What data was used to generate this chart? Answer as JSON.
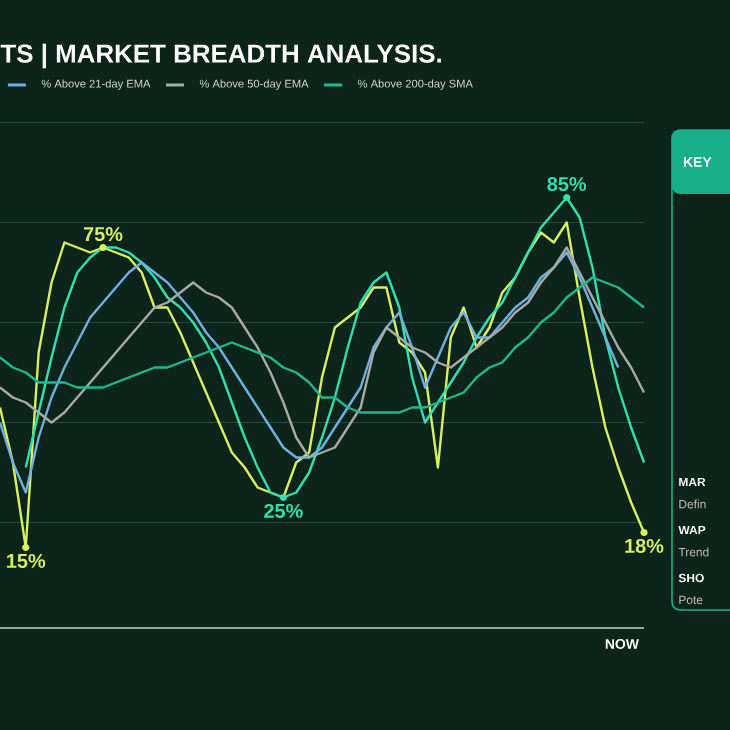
{
  "chart_data": {
    "type": "line",
    "title": "TS | MARKET BREADTH ANALYSIS.",
    "categories": [
      null,
      null,
      null,
      null,
      null,
      null,
      null,
      null,
      null,
      null,
      null,
      null,
      null,
      null,
      null,
      null,
      null,
      null,
      null,
      null,
      null,
      null,
      null,
      null,
      null,
      null,
      null,
      null,
      null,
      null,
      null,
      null,
      null,
      null,
      null,
      null,
      null,
      null,
      null,
      null,
      null,
      null,
      null,
      null,
      null,
      null,
      null,
      null,
      null,
      null,
      null
    ],
    "yticks": [
      {
        "value": 20,
        "label": null
      },
      {
        "value": 40,
        "label": null
      },
      {
        "value": 60,
        "label": null
      },
      {
        "value": 80,
        "label": null
      },
      {
        "value": 100,
        "label": null
      }
    ],
    "grid": "y",
    "legend": "top left",
    "annotations": [
      "NOW",
      "KEY",
      "MAR",
      "Defin",
      "WAP",
      "Trend",
      "SHO",
      "Pote"
    ],
    "series": [
      {
        "color": "#d8f060",
        "values": [
          43,
          32,
          15,
          54,
          68,
          76,
          75,
          74,
          75,
          74,
          73,
          70,
          63,
          63,
          58,
          52,
          46,
          40,
          34,
          31,
          27,
          26,
          25,
          32,
          34,
          49,
          59,
          61,
          63,
          67,
          67,
          56,
          54,
          50,
          31,
          57,
          63,
          55,
          59,
          66,
          69,
          74,
          78,
          76,
          80,
          65,
          51,
          39,
          31,
          24,
          18
        ],
        "value_labels": [
          null,
          null,
          "15%",
          null,
          null,
          null,
          null,
          null,
          "75%",
          null,
          null,
          null,
          null,
          null,
          null,
          null,
          null,
          null,
          null,
          null,
          null,
          null,
          null,
          null,
          null,
          null,
          null,
          null,
          null,
          null,
          null,
          null,
          null,
          null,
          null,
          null,
          null,
          null,
          null,
          null,
          null,
          null,
          null,
          null,
          null,
          null,
          null,
          null,
          null,
          null,
          "18%"
        ]
      },
      {
        "color": "#30e0b0",
        "values": [
          null,
          null,
          31,
          42,
          53,
          63,
          70,
          73,
          75,
          75,
          74,
          72,
          69,
          65,
          63,
          60,
          56,
          51,
          44,
          37,
          31,
          26,
          25,
          26,
          30,
          37,
          45,
          55,
          64,
          68,
          70,
          63,
          49,
          40,
          44,
          48,
          52,
          57,
          61,
          64,
          69,
          74,
          79,
          82,
          85,
          81,
          71,
          57,
          47,
          39,
          32
        ],
        "value_labels": [
          null,
          null,
          null,
          null,
          null,
          null,
          null,
          null,
          null,
          null,
          null,
          null,
          null,
          null,
          null,
          null,
          null,
          null,
          null,
          null,
          null,
          null,
          "25%",
          null,
          null,
          null,
          null,
          null,
          null,
          null,
          null,
          null,
          null,
          null,
          null,
          null,
          null,
          null,
          null,
          null,
          null,
          null,
          null,
          null,
          "85%",
          null,
          null,
          null,
          null,
          null,
          null
        ]
      },
      {
        "name": "% Above 21-day EMA",
        "color": "#70b0e0",
        "values": [
          40,
          32,
          26,
          37,
          45,
          51,
          56,
          61,
          64,
          67,
          70,
          72,
          70,
          68,
          65,
          62,
          58,
          55,
          51,
          47,
          43,
          39,
          35,
          33,
          33,
          35,
          39,
          43,
          47,
          55,
          59,
          62,
          55,
          47,
          53,
          59,
          62,
          57,
          57,
          60,
          63,
          65,
          69,
          71,
          74,
          69,
          63,
          57,
          51,
          null,
          null
        ]
      },
      {
        "name": "% Above 50-day EMA",
        "color": "#a8aaa8",
        "values": [
          47,
          45,
          44,
          42,
          40,
          42,
          45,
          48,
          51,
          54,
          57,
          60,
          63,
          64,
          66,
          68,
          66,
          65,
          63,
          59,
          55,
          50,
          44,
          37,
          33,
          34,
          35,
          39,
          43,
          54,
          59,
          57,
          55,
          54,
          52,
          51,
          53,
          55,
          57,
          59,
          62,
          64,
          68,
          71,
          75,
          70,
          65,
          60,
          55,
          51,
          46
        ]
      },
      {
        "name": "% Above 200-day SMA",
        "color": "#1fb890",
        "values": [
          53,
          51,
          50,
          48,
          48,
          48,
          47,
          47,
          47,
          48,
          49,
          50,
          51,
          51,
          52,
          53,
          54,
          55,
          56,
          55,
          54,
          53,
          51,
          50,
          48,
          45,
          45,
          43,
          42,
          42,
          42,
          42,
          43,
          43,
          44,
          45,
          46,
          49,
          51,
          52,
          55,
          57,
          60,
          62,
          65,
          67,
          69,
          68,
          67,
          65,
          63
        ]
      }
    ]
  }
}
